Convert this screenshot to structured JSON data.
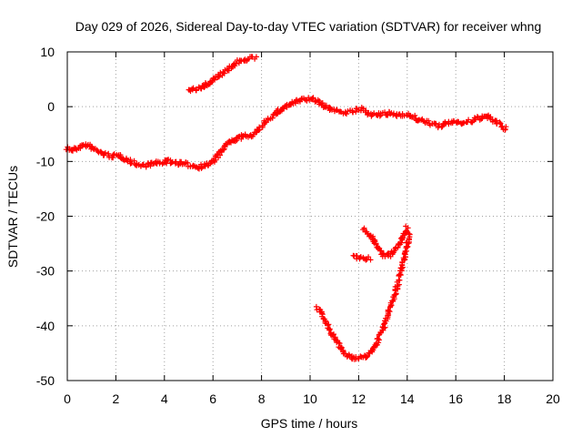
{
  "chart_data": {
    "type": "scatter",
    "title": "Day 029 of 2026, Sidereal Day-to-day VTEC variation (SDTVAR) for receiver whng",
    "xlabel": "GPS time / hours",
    "ylabel": "SDTVAR / TECUs",
    "xlim": [
      0,
      20
    ],
    "ylim": [
      -50,
      10
    ],
    "x_ticks": [
      "0",
      "2",
      "4",
      "6",
      "8",
      "10",
      "12",
      "14",
      "16",
      "18",
      "20"
    ],
    "y_ticks": [
      "10",
      "0",
      "-10",
      "-20",
      "-30",
      "-40",
      "-50"
    ],
    "grid": true,
    "marker": "plus",
    "series_color": "#ff0000",
    "series": [
      {
        "name": "main-trace",
        "points": [
          [
            0.0,
            -7.5
          ],
          [
            0.2,
            -8.0
          ],
          [
            0.5,
            -7.3
          ],
          [
            0.8,
            -7.0
          ],
          [
            1.0,
            -7.5
          ],
          [
            1.4,
            -8.5
          ],
          [
            1.8,
            -9.0
          ],
          [
            2.2,
            -9.0
          ],
          [
            2.6,
            -10.0
          ],
          [
            3.0,
            -10.8
          ],
          [
            3.4,
            -10.5
          ],
          [
            3.8,
            -10.2
          ],
          [
            4.2,
            -10.0
          ],
          [
            4.6,
            -10.3
          ],
          [
            5.0,
            -10.6
          ],
          [
            5.4,
            -11.0
          ],
          [
            5.8,
            -10.5
          ],
          [
            6.0,
            -10.0
          ],
          [
            6.2,
            -9.0
          ],
          [
            6.4,
            -7.8
          ],
          [
            6.6,
            -6.7
          ],
          [
            6.9,
            -6.0
          ],
          [
            7.2,
            -5.5
          ],
          [
            7.5,
            -5.3
          ],
          [
            7.8,
            -4.7
          ],
          [
            8.0,
            -3.8
          ],
          [
            8.2,
            -2.5
          ],
          [
            8.5,
            -1.5
          ],
          [
            8.8,
            -0.5
          ],
          [
            9.1,
            0.3
          ],
          [
            9.4,
            0.8
          ],
          [
            9.7,
            1.3
          ],
          [
            10.0,
            1.4
          ],
          [
            10.3,
            1.0
          ],
          [
            10.6,
            0.0
          ],
          [
            10.9,
            -0.5
          ],
          [
            11.2,
            -0.8
          ],
          [
            11.5,
            -1.1
          ],
          [
            11.8,
            -0.8
          ],
          [
            12.1,
            -0.5
          ],
          [
            12.4,
            -1.2
          ],
          [
            12.7,
            -1.6
          ],
          [
            13.0,
            -1.4
          ],
          [
            13.3,
            -1.3
          ],
          [
            13.6,
            -1.5
          ],
          [
            13.9,
            -1.3
          ],
          [
            14.2,
            -1.8
          ],
          [
            14.5,
            -2.5
          ],
          [
            14.8,
            -2.8
          ],
          [
            15.1,
            -3.2
          ],
          [
            15.4,
            -3.6
          ],
          [
            15.7,
            -2.9
          ],
          [
            16.0,
            -2.7
          ],
          [
            16.3,
            -3.0
          ],
          [
            16.6,
            -2.7
          ],
          [
            16.9,
            -2.2
          ],
          [
            17.2,
            -1.7
          ],
          [
            17.5,
            -2.3
          ],
          [
            17.8,
            -3.3
          ],
          [
            18.1,
            -4.2
          ]
        ]
      },
      {
        "name": "upper-arc",
        "points": [
          [
            5.0,
            2.8
          ],
          [
            5.3,
            3.2
          ],
          [
            5.6,
            3.6
          ],
          [
            5.9,
            4.6
          ],
          [
            6.2,
            5.6
          ],
          [
            6.5,
            6.4
          ],
          [
            6.8,
            7.4
          ],
          [
            7.1,
            8.5
          ],
          [
            7.4,
            8.7
          ],
          [
            7.8,
            8.9
          ]
        ]
      },
      {
        "name": "lower-hook",
        "points": [
          [
            10.3,
            -36.6
          ],
          [
            10.6,
            -39.0
          ],
          [
            10.9,
            -41.4
          ],
          [
            11.2,
            -43.6
          ],
          [
            11.5,
            -45.3
          ],
          [
            11.8,
            -46.0
          ],
          [
            12.1,
            -45.9
          ],
          [
            12.4,
            -45.3
          ],
          [
            12.7,
            -43.5
          ],
          [
            13.0,
            -40.5
          ],
          [
            13.3,
            -36.8
          ],
          [
            13.6,
            -32.5
          ],
          [
            13.9,
            -27.5
          ],
          [
            14.1,
            -23.0
          ]
        ]
      },
      {
        "name": "small-dash",
        "points": [
          [
            11.8,
            -27.5
          ],
          [
            12.0,
            -27.5
          ],
          [
            12.3,
            -27.8
          ],
          [
            12.5,
            -27.8
          ]
        ]
      },
      {
        "name": "v-curve",
        "points": [
          [
            12.2,
            -22.3
          ],
          [
            12.5,
            -23.5
          ],
          [
            12.8,
            -25.8
          ],
          [
            13.0,
            -27.0
          ],
          [
            13.3,
            -27.0
          ],
          [
            13.6,
            -25.5
          ],
          [
            13.9,
            -23.2
          ],
          [
            14.0,
            -21.8
          ]
        ]
      }
    ]
  }
}
